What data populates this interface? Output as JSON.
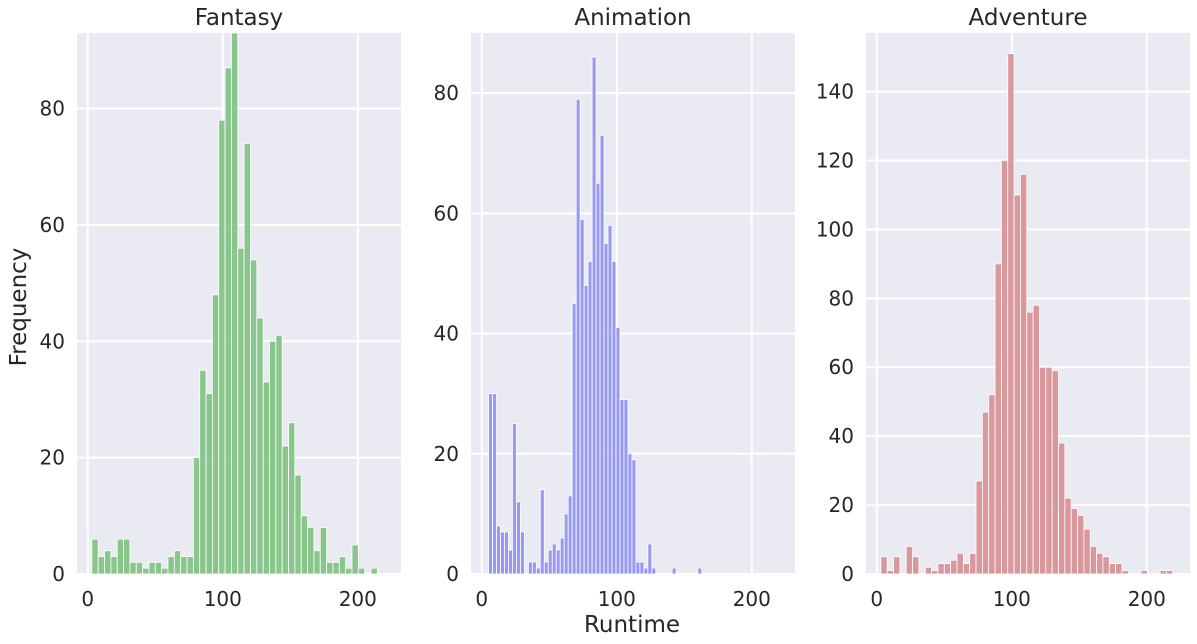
{
  "figure": {
    "xlabel": "Runtime",
    "ylabel": "Frequency"
  },
  "chart_data": [
    {
      "type": "bar",
      "title": "Fantasy",
      "color": "#78c07a",
      "xlim": [
        -8,
        232
      ],
      "ylim": [
        0,
        93
      ],
      "xticks": [
        0,
        100,
        200
      ],
      "yticks": [
        0,
        20,
        40,
        60,
        80
      ],
      "bin_width": 4.7,
      "bins": [
        [
          3,
          6
        ],
        [
          7.7,
          3
        ],
        [
          12.4,
          4
        ],
        [
          17.1,
          3
        ],
        [
          21.8,
          6
        ],
        [
          26.5,
          6
        ],
        [
          31.2,
          2
        ],
        [
          35.9,
          2
        ],
        [
          40.6,
          1
        ],
        [
          45.3,
          2
        ],
        [
          50,
          2
        ],
        [
          54.7,
          1
        ],
        [
          59.4,
          3
        ],
        [
          64.1,
          4
        ],
        [
          68.8,
          3
        ],
        [
          73.5,
          3
        ],
        [
          78.2,
          20
        ],
        [
          82.9,
          35
        ],
        [
          87.6,
          31
        ],
        [
          92.3,
          48
        ],
        [
          97,
          78
        ],
        [
          101.7,
          87
        ],
        [
          106.4,
          93
        ],
        [
          111.1,
          56
        ],
        [
          115.8,
          74
        ],
        [
          120.5,
          54
        ],
        [
          125.2,
          44
        ],
        [
          129.9,
          33
        ],
        [
          134.6,
          40
        ],
        [
          139.3,
          41
        ],
        [
          144,
          22
        ],
        [
          148.7,
          26
        ],
        [
          153.4,
          17
        ],
        [
          158.1,
          10
        ],
        [
          162.8,
          8
        ],
        [
          167.5,
          4
        ],
        [
          172.2,
          8
        ],
        [
          176.9,
          2
        ],
        [
          181.6,
          2
        ],
        [
          186.3,
          3
        ],
        [
          191,
          1
        ],
        [
          195.7,
          5
        ],
        [
          200.4,
          1
        ],
        [
          205.1,
          0
        ],
        [
          209.8,
          1
        ],
        [
          214.5,
          0
        ],
        [
          219.2,
          0
        ],
        [
          223.9,
          0
        ]
      ]
    },
    {
      "type": "bar",
      "title": "Animation",
      "color": "#8a8cf0",
      "xlim": [
        -8,
        232
      ],
      "ylim": [
        0,
        90
      ],
      "xticks": [
        0,
        100,
        200
      ],
      "yticks": [
        0,
        20,
        40,
        60,
        80
      ],
      "bin_width": 2.95,
      "bins": [
        [
          5,
          30
        ],
        [
          7.95,
          30
        ],
        [
          10.9,
          8
        ],
        [
          13.85,
          7
        ],
        [
          16.8,
          7
        ],
        [
          19.75,
          4
        ],
        [
          22.7,
          25
        ],
        [
          25.65,
          12
        ],
        [
          28.6,
          7
        ],
        [
          31.55,
          0
        ],
        [
          34.5,
          2
        ],
        [
          37.45,
          2
        ],
        [
          40.4,
          1
        ],
        [
          43.35,
          14
        ],
        [
          46.3,
          2
        ],
        [
          49.25,
          4
        ],
        [
          52.2,
          5
        ],
        [
          55.15,
          4
        ],
        [
          58.1,
          6
        ],
        [
          61.05,
          10
        ],
        [
          64,
          13
        ],
        [
          66.95,
          45
        ],
        [
          69.9,
          79
        ],
        [
          72.85,
          59
        ],
        [
          75.8,
          48
        ],
        [
          78.75,
          52
        ],
        [
          81.7,
          86
        ],
        [
          84.65,
          65
        ],
        [
          87.6,
          73
        ],
        [
          90.55,
          55
        ],
        [
          93.5,
          58
        ],
        [
          96.45,
          52
        ],
        [
          99.4,
          41
        ],
        [
          102.35,
          29
        ],
        [
          105.3,
          29
        ],
        [
          108.25,
          20
        ],
        [
          111.2,
          19
        ],
        [
          114.15,
          2
        ],
        [
          117.1,
          2
        ],
        [
          120.05,
          1
        ],
        [
          123,
          5
        ],
        [
          125.95,
          1
        ],
        [
          129,
          0
        ],
        [
          141,
          1
        ],
        [
          160,
          1
        ]
      ]
    },
    {
      "type": "bar",
      "title": "Adventure",
      "color": "#d58a8d",
      "xlim": [
        -8,
        232
      ],
      "ylim": [
        0,
        157
      ],
      "xticks": [
        0,
        100,
        200
      ],
      "yticks": [
        0,
        20,
        40,
        60,
        80,
        100,
        120,
        140
      ],
      "bin_width": 4.7,
      "bins": [
        [
          3,
          5
        ],
        [
          7.7,
          1
        ],
        [
          12.4,
          5
        ],
        [
          17.1,
          0
        ],
        [
          21.8,
          8
        ],
        [
          26.5,
          5
        ],
        [
          31.2,
          0
        ],
        [
          35.9,
          2
        ],
        [
          40.6,
          1
        ],
        [
          45.3,
          3
        ],
        [
          50,
          3
        ],
        [
          54.7,
          4
        ],
        [
          59.4,
          6
        ],
        [
          64.1,
          3
        ],
        [
          68.8,
          6
        ],
        [
          73.5,
          27
        ],
        [
          78.2,
          47
        ],
        [
          82.9,
          52
        ],
        [
          87.6,
          90
        ],
        [
          92.3,
          120
        ],
        [
          97,
          151
        ],
        [
          101.7,
          110
        ],
        [
          106.4,
          116
        ],
        [
          111.1,
          76
        ],
        [
          115.8,
          78
        ],
        [
          120.5,
          60
        ],
        [
          125.2,
          60
        ],
        [
          129.9,
          59
        ],
        [
          134.6,
          38
        ],
        [
          139.3,
          22
        ],
        [
          144,
          19
        ],
        [
          148.7,
          17
        ],
        [
          153.4,
          13
        ],
        [
          158.1,
          8
        ],
        [
          162.8,
          6
        ],
        [
          167.5,
          5
        ],
        [
          172.2,
          3
        ],
        [
          176.9,
          3
        ],
        [
          181.6,
          1
        ],
        [
          186.3,
          0
        ],
        [
          191,
          0
        ],
        [
          195.7,
          1
        ],
        [
          200.4,
          0
        ],
        [
          205.1,
          0
        ],
        [
          209.8,
          1
        ],
        [
          214.5,
          1
        ]
      ]
    }
  ]
}
